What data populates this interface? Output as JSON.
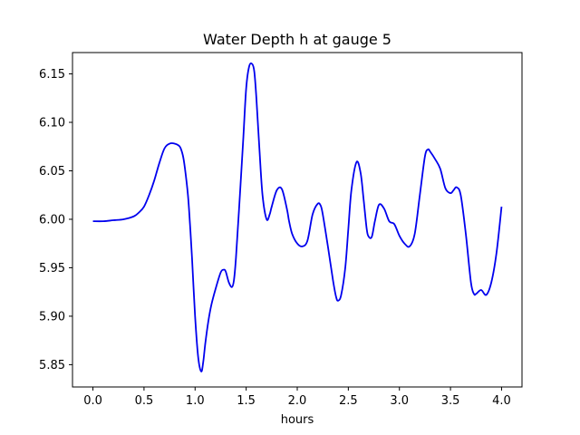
{
  "chart_data": {
    "type": "line",
    "title": "Water Depth h at gauge 5",
    "xlabel": "hours",
    "ylabel": "",
    "xlim": [
      -0.2,
      4.2
    ],
    "ylim": [
      5.827,
      6.172
    ],
    "xticks": [
      0.0,
      0.5,
      1.0,
      1.5,
      2.0,
      2.5,
      3.0,
      3.5,
      4.0
    ],
    "xtick_labels": [
      "0.0",
      "0.5",
      "1.0",
      "1.5",
      "2.0",
      "2.5",
      "3.0",
      "3.5",
      "4.0"
    ],
    "yticks": [
      5.85,
      5.9,
      5.95,
      6.0,
      6.05,
      6.1,
      6.15
    ],
    "ytick_labels": [
      "5.85",
      "5.90",
      "5.95",
      "6.00",
      "6.05",
      "6.10",
      "6.15"
    ],
    "grid": false,
    "series": [
      {
        "color": "#0000ee",
        "x": [
          0.0,
          0.1,
          0.2,
          0.3,
          0.4,
          0.45,
          0.5,
          0.55,
          0.6,
          0.65,
          0.7,
          0.75,
          0.8,
          0.85,
          0.88,
          0.9,
          0.93,
          0.95,
          0.97,
          1.0,
          1.03,
          1.06,
          1.08,
          1.1,
          1.13,
          1.16,
          1.2,
          1.25,
          1.28,
          1.3,
          1.33,
          1.36,
          1.38,
          1.4,
          1.43,
          1.47,
          1.5,
          1.53,
          1.56,
          1.58,
          1.6,
          1.63,
          1.66,
          1.7,
          1.73,
          1.75,
          1.8,
          1.85,
          1.9,
          1.92,
          1.95,
          2.0,
          2.05,
          2.1,
          2.15,
          2.2,
          2.23,
          2.25,
          2.3,
          2.35,
          2.38,
          2.4,
          2.43,
          2.47,
          2.5,
          2.53,
          2.58,
          2.62,
          2.65,
          2.68,
          2.7,
          2.73,
          2.76,
          2.8,
          2.85,
          2.9,
          2.95,
          3.0,
          3.05,
          3.1,
          3.15,
          3.2,
          3.25,
          3.28,
          3.3,
          3.35,
          3.4,
          3.45,
          3.5,
          3.53,
          3.56,
          3.6,
          3.65,
          3.7,
          3.73,
          3.75,
          3.8,
          3.85,
          3.9,
          3.95,
          4.0
        ],
        "values": [
          5.998,
          5.998,
          5.999,
          6.0,
          6.003,
          6.007,
          6.013,
          6.025,
          6.04,
          6.058,
          6.073,
          6.078,
          6.078,
          6.075,
          6.066,
          6.053,
          6.025,
          5.995,
          5.96,
          5.9,
          5.858,
          5.843,
          5.853,
          5.872,
          5.895,
          5.912,
          5.928,
          5.945,
          5.948,
          5.946,
          5.935,
          5.93,
          5.937,
          5.96,
          6.01,
          6.08,
          6.135,
          6.158,
          6.16,
          6.152,
          6.125,
          6.072,
          6.025,
          6.0,
          6.005,
          6.013,
          6.03,
          6.031,
          6.01,
          5.998,
          5.985,
          5.975,
          5.972,
          5.978,
          6.005,
          6.016,
          6.014,
          6.005,
          5.972,
          5.937,
          5.92,
          5.916,
          5.922,
          5.95,
          5.99,
          6.03,
          6.059,
          6.048,
          6.02,
          5.99,
          5.982,
          5.982,
          5.998,
          6.015,
          6.011,
          5.998,
          5.995,
          5.983,
          5.975,
          5.972,
          5.985,
          6.025,
          6.065,
          6.072,
          6.07,
          6.062,
          6.052,
          6.032,
          6.027,
          6.03,
          6.033,
          6.025,
          5.985,
          5.935,
          5.923,
          5.923,
          5.927,
          5.922,
          5.935,
          5.965,
          6.013
        ]
      }
    ]
  }
}
